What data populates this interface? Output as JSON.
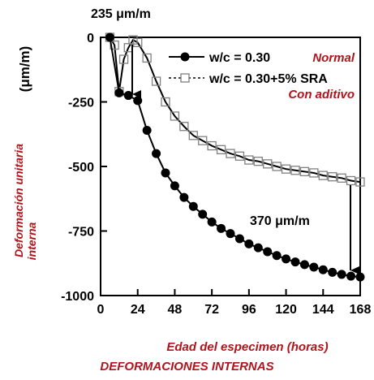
{
  "chart_data": {
    "type": "line",
    "xlabel": "Edad del especimen (horas)",
    "ylabel_line1": "Deformación unitaria",
    "ylabel_line2": "interna",
    "ylabel_unit": "(μm/m)",
    "xlim": [
      0,
      168
    ],
    "ylim": [
      -1000,
      0
    ],
    "xticks": [
      0,
      24,
      48,
      72,
      96,
      120,
      144,
      168
    ],
    "yticks": [
      0,
      -250,
      -500,
      -750,
      -1000
    ],
    "series": [
      {
        "name": "w/c = 0.30",
        "sublabel": "Normal",
        "marker": "filled-circle",
        "color": "#000000",
        "x": [
          6,
          12,
          18,
          24,
          30,
          36,
          42,
          48,
          54,
          60,
          66,
          72,
          78,
          84,
          90,
          96,
          102,
          108,
          114,
          120,
          126,
          132,
          138,
          144,
          150,
          156,
          162,
          168
        ],
        "y": [
          0,
          -215,
          -225,
          -245,
          -360,
          -450,
          -525,
          -575,
          -620,
          -655,
          -685,
          -715,
          -740,
          -760,
          -780,
          -800,
          -815,
          -830,
          -845,
          -858,
          -870,
          -880,
          -890,
          -900,
          -910,
          -918,
          -925,
          -928
        ]
      },
      {
        "name": "w/c = 0.30+5% SRA",
        "sublabel": "Con aditivo",
        "marker": "open-square",
        "color": "#808080",
        "x": [
          6,
          9,
          12,
          15,
          18,
          21,
          24,
          30,
          36,
          42,
          48,
          54,
          60,
          66,
          72,
          78,
          84,
          90,
          96,
          102,
          108,
          114,
          120,
          126,
          132,
          138,
          144,
          150,
          156,
          162,
          168
        ],
        "y": [
          0,
          -30,
          -210,
          -85,
          -40,
          -10,
          -20,
          -80,
          -170,
          -250,
          -305,
          -345,
          -380,
          -400,
          -420,
          -435,
          -450,
          -460,
          -475,
          -480,
          -490,
          -500,
          -510,
          -515,
          -520,
          -525,
          -535,
          -540,
          -545,
          -555,
          -560
        ]
      }
    ],
    "annotations": [
      {
        "text": "235 μm/m"
      },
      {
        "text": "370 μm/m"
      }
    ],
    "footer": "DEFORMACIONES INTERNAS"
  }
}
